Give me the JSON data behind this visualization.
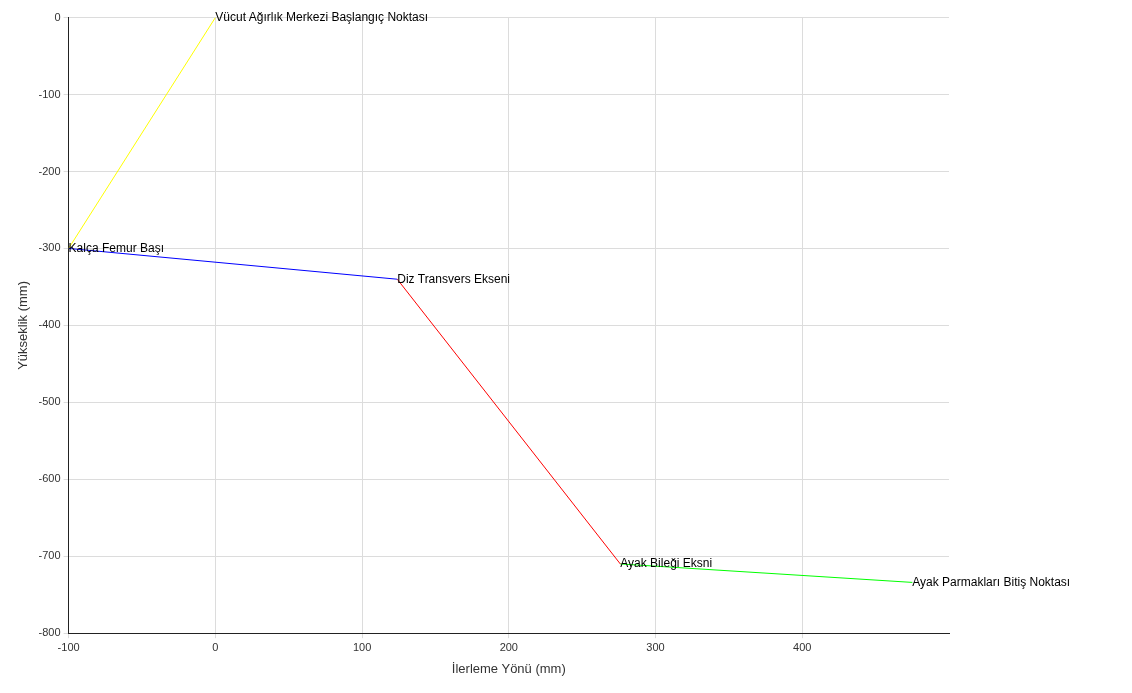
{
  "chart_data": {
    "type": "line",
    "xlabel": "İlerleme Yönü (mm)",
    "ylabel": "Yükseklik (mm)",
    "series": [
      {
        "color": "#ffff00",
        "x": [
          0,
          -100
        ],
        "values": [
          0,
          -300
        ]
      },
      {
        "color": "#0000ff",
        "x": [
          -100,
          124
        ],
        "values": [
          -300,
          -340
        ]
      },
      {
        "color": "#ff0000",
        "x": [
          124,
          276
        ],
        "values": [
          -340,
          -710
        ]
      },
      {
        "color": "#00ff00",
        "x": [
          276,
          475
        ],
        "values": [
          -710,
          -734
        ]
      }
    ],
    "xlim": [
      -100,
      500
    ],
    "xticks": [
      -100,
      0,
      100,
      200,
      300,
      400
    ],
    "ylim": [
      -800,
      0
    ],
    "yticks": [
      -800,
      -700,
      -600,
      -500,
      -400,
      -300,
      -200,
      -100,
      0
    ],
    "grid": true,
    "legend": false,
    "marker": "none",
    "line_style": "solid",
    "annotations": [
      {
        "text": "Vücut Ağırlık Merkezi Başlangıç Noktası",
        "x": 0,
        "y": 0
      },
      {
        "text": "Kalça Femur Başı",
        "x": -100,
        "y": -300
      },
      {
        "text": "Diz Transvers Ekseni",
        "x": 124,
        "y": -340
      },
      {
        "text": "Ayak Bileği Eksni",
        "x": 276,
        "y": -710
      },
      {
        "text": "Ayak Parmakları Bitiş Noktası",
        "x": 475,
        "y": -734
      }
    ]
  }
}
